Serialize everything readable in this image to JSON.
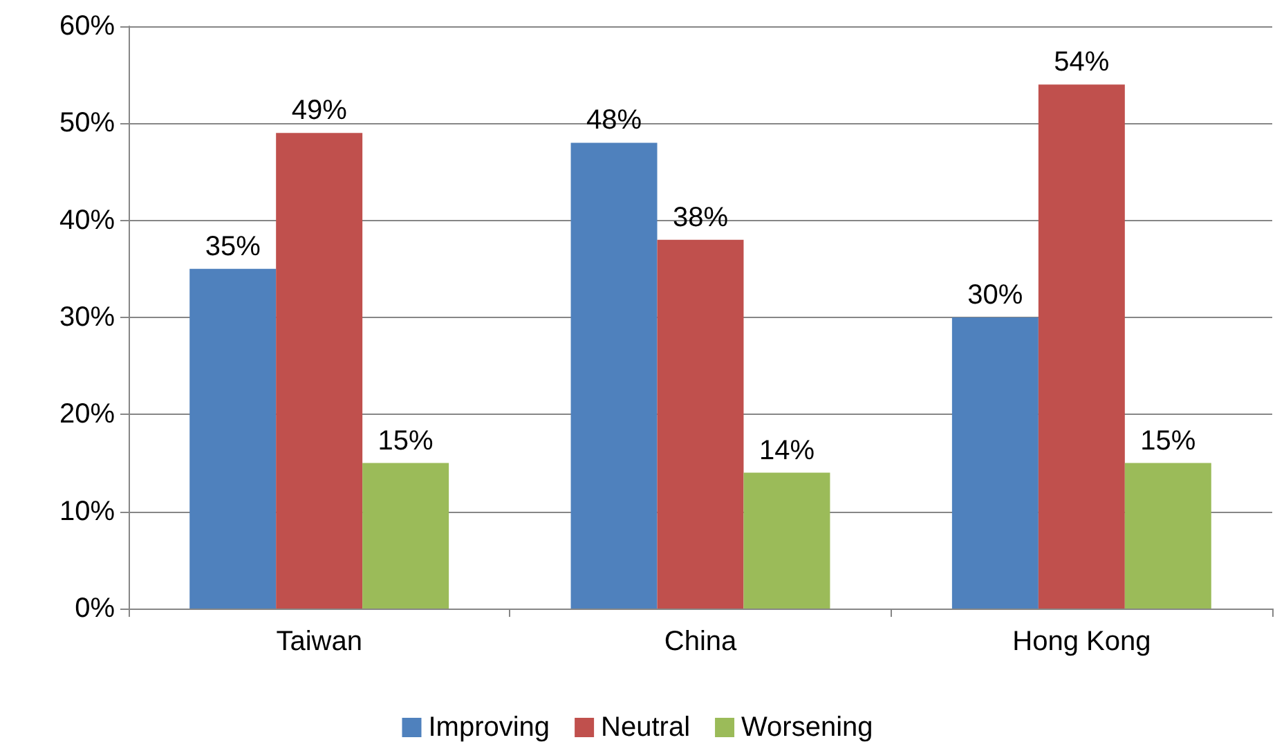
{
  "chart_data": {
    "type": "bar",
    "categories": [
      "Taiwan",
      "China",
      "Hong Kong"
    ],
    "series": [
      {
        "name": "Improving",
        "color": "#4f81bd",
        "values": [
          35,
          48,
          30
        ],
        "value_labels": [
          "35%",
          "48%",
          "30%"
        ]
      },
      {
        "name": "Neutral",
        "color": "#c0504d",
        "values": [
          49,
          38,
          54
        ],
        "value_labels": [
          "49%",
          "38%",
          "54%"
        ]
      },
      {
        "name": "Worsening",
        "color": "#9bbb59",
        "values": [
          15,
          14,
          15
        ],
        "value_labels": [
          "15%",
          "14%",
          "15%"
        ]
      }
    ],
    "ylim": [
      0,
      60
    ],
    "yticks": [
      {
        "value": 0,
        "label": "0%"
      },
      {
        "value": 10,
        "label": "10%"
      },
      {
        "value": 20,
        "label": "20%"
      },
      {
        "value": 30,
        "label": "30%"
      },
      {
        "value": 40,
        "label": "40%"
      },
      {
        "value": 50,
        "label": "50%"
      },
      {
        "value": 60,
        "label": "60%"
      }
    ],
    "grid": "y",
    "legend": "bottom"
  }
}
